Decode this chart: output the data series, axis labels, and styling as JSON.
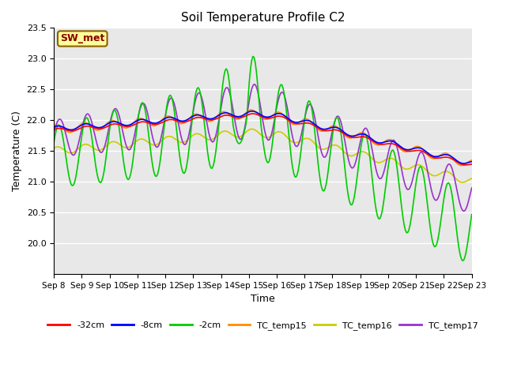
{
  "title": "Soil Temperature Profile C2",
  "xlabel": "Time",
  "ylabel": "Temperature (C)",
  "ylim": [
    19.5,
    23.5
  ],
  "yticks": [
    20.0,
    20.5,
    21.0,
    21.5,
    22.0,
    22.5,
    23.0,
    23.5
  ],
  "xtick_labels": [
    "Sep 8",
    "Sep 9",
    "Sep 10",
    "Sep 11",
    "Sep 12",
    "Sep 13",
    "Sep 14",
    "Sep 15",
    "Sep 16",
    "Sep 17",
    "Sep 18",
    "Sep 19",
    "Sep 20",
    "Sep 21",
    "Sep 22",
    "Sep 23"
  ],
  "annotation_text": "SW_met",
  "annotation_color": "#8B0000",
  "annotation_bg": "#FFFF99",
  "series": {
    "neg32cm": {
      "color": "#FF0000",
      "label": "-32cm",
      "lw": 1.2
    },
    "neg8cm": {
      "color": "#0000FF",
      "label": "-8cm",
      "lw": 1.2
    },
    "neg2cm": {
      "color": "#00CC00",
      "label": "-2cm",
      "lw": 1.2
    },
    "tc15": {
      "color": "#FF8C00",
      "label": "TC_temp15",
      "lw": 1.2
    },
    "tc16": {
      "color": "#CCCC00",
      "label": "TC_temp16",
      "lw": 1.2
    },
    "tc17": {
      "color": "#9932CC",
      "label": "TC_temp17",
      "lw": 1.2
    }
  },
  "bg_color": "#E8E8E8",
  "fig_bg": "#FFFFFF"
}
